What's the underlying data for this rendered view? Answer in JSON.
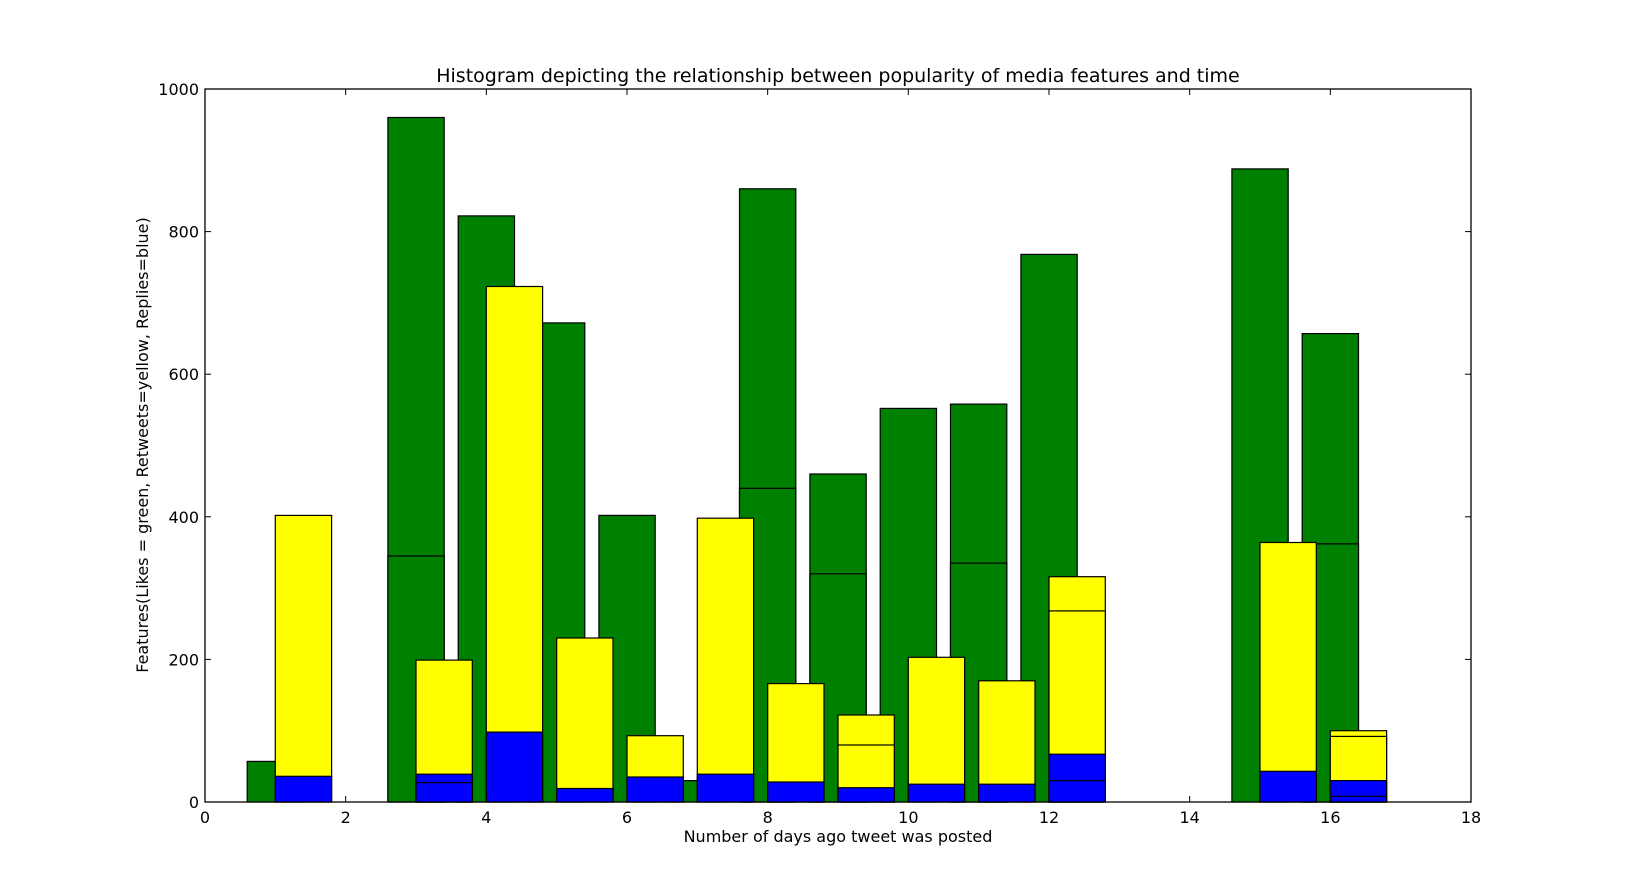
{
  "chart_data": {
    "type": "bar",
    "title": "Histogram depicting the relationship between popularity of media features and time",
    "xlabel": "Number of days ago tweet was posted",
    "ylabel": "Features(Likes = green, Retweets=yellow, Replies=blue)",
    "xlim": [
      0,
      18
    ],
    "ylim": [
      0,
      1000
    ],
    "xticks": [
      0,
      2,
      4,
      6,
      8,
      10,
      12,
      14,
      16,
      18
    ],
    "yticks": [
      0,
      200,
      400,
      600,
      800,
      1000
    ],
    "bar_width": 0.8,
    "grid": false,
    "colors": {
      "likes": "#008000",
      "retweets": "#ffff00",
      "replies": "#0000ff"
    },
    "series": [
      {
        "key": "likes",
        "bars": [
          {
            "x": 0.6,
            "value": 57
          },
          {
            "x": 2.6,
            "value": 960
          },
          {
            "x": 2.6,
            "value": 345
          },
          {
            "x": 3.6,
            "value": 822
          },
          {
            "x": 4.6,
            "value": 672
          },
          {
            "x": 5.6,
            "value": 402
          },
          {
            "x": 6.6,
            "value": 30
          },
          {
            "x": 7.6,
            "value": 860
          },
          {
            "x": 7.6,
            "value": 440
          },
          {
            "x": 8.6,
            "value": 460
          },
          {
            "x": 8.6,
            "value": 320
          },
          {
            "x": 9.6,
            "value": 552
          },
          {
            "x": 10.6,
            "value": 558
          },
          {
            "x": 10.6,
            "value": 335
          },
          {
            "x": 11.6,
            "value": 768
          },
          {
            "x": 14.6,
            "value": 888
          },
          {
            "x": 15.6,
            "value": 657
          },
          {
            "x": 15.6,
            "value": 362
          }
        ]
      },
      {
        "key": "retweets",
        "bars": [
          {
            "x": 1.0,
            "value": 402
          },
          {
            "x": 3.0,
            "value": 199
          },
          {
            "x": 4.0,
            "value": 723
          },
          {
            "x": 5.0,
            "value": 230
          },
          {
            "x": 6.0,
            "value": 93
          },
          {
            "x": 7.0,
            "value": 398
          },
          {
            "x": 8.0,
            "value": 166
          },
          {
            "x": 9.0,
            "value": 122
          },
          {
            "x": 9.0,
            "value": 80
          },
          {
            "x": 10.0,
            "value": 203
          },
          {
            "x": 11.0,
            "value": 170
          },
          {
            "x": 12.0,
            "value": 316
          },
          {
            "x": 12.0,
            "value": 268
          },
          {
            "x": 15.0,
            "value": 364
          },
          {
            "x": 16.0,
            "value": 100
          },
          {
            "x": 16.0,
            "value": 92
          }
        ]
      },
      {
        "key": "replies",
        "bars": [
          {
            "x": 1.0,
            "value": 36
          },
          {
            "x": 3.0,
            "value": 39
          },
          {
            "x": 3.0,
            "value": 27
          },
          {
            "x": 4.0,
            "value": 98
          },
          {
            "x": 5.0,
            "value": 19
          },
          {
            "x": 6.0,
            "value": 35
          },
          {
            "x": 7.0,
            "value": 39
          },
          {
            "x": 8.0,
            "value": 28
          },
          {
            "x": 9.0,
            "value": 20
          },
          {
            "x": 10.0,
            "value": 25
          },
          {
            "x": 11.0,
            "value": 25
          },
          {
            "x": 12.0,
            "value": 67
          },
          {
            "x": 12.0,
            "value": 30
          },
          {
            "x": 15.0,
            "value": 43
          },
          {
            "x": 16.0,
            "value": 30
          },
          {
            "x": 16.0,
            "value": 8
          }
        ]
      }
    ]
  }
}
